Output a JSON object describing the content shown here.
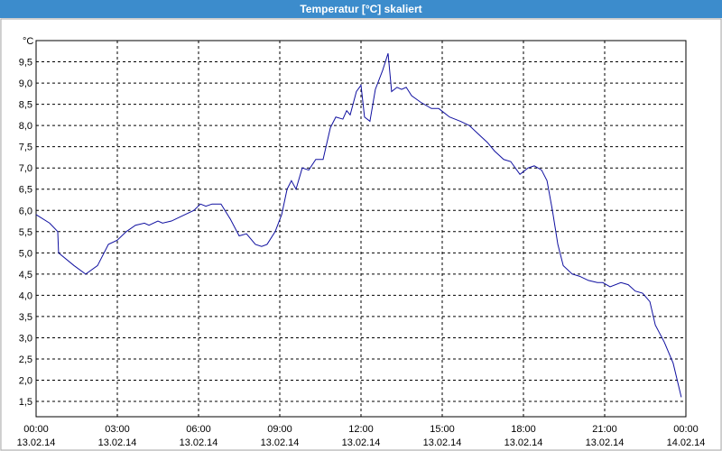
{
  "chart_data": {
    "type": "line",
    "title": "Temperatur [°C] skaliert",
    "y_unit": "°C",
    "xlim": [
      0,
      24
    ],
    "ylim": [
      1.14,
      10.0
    ],
    "xticks": [
      {
        "value": 0,
        "label": "00:00",
        "date": "13.02.14"
      },
      {
        "value": 3,
        "label": "03:00",
        "date": "13.02.14"
      },
      {
        "value": 6,
        "label": "06:00",
        "date": "13.02.14"
      },
      {
        "value": 9,
        "label": "09:00",
        "date": "13.02.14"
      },
      {
        "value": 12,
        "label": "12:00",
        "date": "13.02.14"
      },
      {
        "value": 15,
        "label": "15:00",
        "date": "13.02.14"
      },
      {
        "value": 18,
        "label": "18:00",
        "date": "13.02.14"
      },
      {
        "value": 21,
        "label": "21:00",
        "date": "13.02.14"
      },
      {
        "value": 24,
        "label": "00:00",
        "date": "14.02.14"
      }
    ],
    "yticks": [
      {
        "value": 1.5,
        "label": "1,5"
      },
      {
        "value": 2.0,
        "label": "2,0"
      },
      {
        "value": 2.5,
        "label": "2,5"
      },
      {
        "value": 3.0,
        "label": "3,0"
      },
      {
        "value": 3.5,
        "label": "3,5"
      },
      {
        "value": 4.0,
        "label": "4,0"
      },
      {
        "value": 4.5,
        "label": "4,5"
      },
      {
        "value": 5.0,
        "label": "5,0"
      },
      {
        "value": 5.5,
        "label": "5,5"
      },
      {
        "value": 6.0,
        "label": "6,0"
      },
      {
        "value": 6.5,
        "label": "6,5"
      },
      {
        "value": 7.0,
        "label": "7,0"
      },
      {
        "value": 7.5,
        "label": "7,5"
      },
      {
        "value": 8.0,
        "label": "8,0"
      },
      {
        "value": 8.5,
        "label": "8,5"
      },
      {
        "value": 9.0,
        "label": "9,0"
      },
      {
        "value": 9.5,
        "label": "9,5"
      }
    ],
    "grid": true,
    "series": [
      {
        "color": "#1010a0",
        "x": [
          0,
          0.5,
          0.8,
          0.83,
          1.4,
          1.83,
          2.27,
          2.67,
          3,
          3.33,
          3.67,
          4,
          4.17,
          4.5,
          4.67,
          5,
          5.33,
          5.83,
          6.07,
          6.27,
          6.5,
          6.83,
          7.17,
          7.5,
          7.77,
          8.1,
          8.33,
          8.53,
          8.83,
          9.07,
          9.27,
          9.43,
          9.6,
          9.83,
          10.07,
          10.33,
          10.6,
          10.87,
          11.07,
          11.33,
          11.47,
          11.6,
          11.83,
          12,
          12.13,
          12.33,
          12.53,
          12.8,
          13,
          13.13,
          13.33,
          13.5,
          13.67,
          13.87,
          14.2,
          14.6,
          14.87,
          15.27,
          15.67,
          16,
          16.33,
          16.67,
          16.93,
          17.27,
          17.53,
          17.87,
          18.17,
          18.4,
          18.67,
          18.87,
          19.07,
          19.27,
          19.47,
          19.8,
          20.07,
          20.4,
          20.73,
          20.93,
          21.2,
          21.6,
          21.87,
          22.13,
          22.4,
          22.67,
          22.87,
          23.2,
          23.53,
          23.83
        ],
        "values": [
          5.9,
          5.7,
          5.5,
          5.0,
          4.7,
          4.5,
          4.7,
          5.2,
          5.3,
          5.5,
          5.65,
          5.7,
          5.65,
          5.75,
          5.7,
          5.75,
          5.85,
          6.0,
          6.15,
          6.1,
          6.15,
          6.15,
          5.8,
          5.4,
          5.45,
          5.2,
          5.15,
          5.2,
          5.5,
          5.9,
          6.5,
          6.7,
          6.5,
          7.0,
          6.95,
          7.2,
          7.2,
          7.95,
          8.2,
          8.15,
          8.35,
          8.25,
          8.8,
          8.95,
          8.2,
          8.1,
          8.85,
          9.3,
          9.7,
          8.8,
          8.9,
          8.85,
          8.9,
          8.7,
          8.55,
          8.4,
          8.4,
          8.2,
          8.1,
          8.0,
          7.8,
          7.6,
          7.4,
          7.2,
          7.15,
          6.85,
          7.0,
          7.05,
          6.95,
          6.7,
          6.0,
          5.2,
          4.7,
          4.5,
          4.45,
          4.35,
          4.3,
          4.3,
          4.2,
          4.3,
          4.25,
          4.1,
          4.05,
          3.85,
          3.3,
          2.9,
          2.4,
          1.6
        ]
      }
    ]
  }
}
